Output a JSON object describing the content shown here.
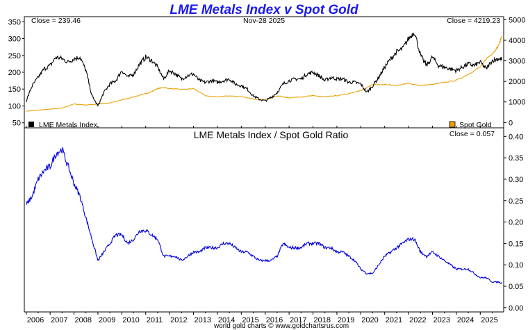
{
  "chart_data": [
    {
      "type": "line",
      "title": "LME Metals Index v Spot Gold",
      "date_label": "Nov-28  2025",
      "left_close": "Close = 239.46",
      "right_close": "Close = 4219.23",
      "left_axis": {
        "ylim": [
          35,
          365
        ],
        "ticks": [
          50,
          100,
          150,
          200,
          250,
          300,
          350
        ]
      },
      "right_axis": {
        "ylim": [
          -260,
          5150
        ],
        "ticks": [
          0,
          1000,
          2000,
          3000,
          4000,
          5000
        ]
      },
      "series": [
        {
          "name": "LME Metals Index",
          "axis": "left",
          "color": "#000000",
          "x": [
            2006.0,
            2006.25,
            2006.5,
            2006.75,
            2007.0,
            2007.25,
            2007.5,
            2007.75,
            2008.0,
            2008.25,
            2008.5,
            2008.75,
            2009.0,
            2009.25,
            2009.5,
            2009.75,
            2010.0,
            2010.25,
            2010.5,
            2010.75,
            2011.0,
            2011.25,
            2011.5,
            2011.75,
            2012.0,
            2012.25,
            2012.5,
            2012.75,
            2013.0,
            2013.25,
            2013.5,
            2013.75,
            2014.0,
            2014.25,
            2014.5,
            2014.75,
            2015.0,
            2015.25,
            2015.5,
            2015.75,
            2016.0,
            2016.25,
            2016.5,
            2016.75,
            2017.0,
            2017.25,
            2017.5,
            2017.75,
            2018.0,
            2018.25,
            2018.5,
            2018.75,
            2019.0,
            2019.25,
            2019.5,
            2019.75,
            2020.0,
            2020.25,
            2020.5,
            2020.75,
            2021.0,
            2021.25,
            2021.5,
            2021.75,
            2022.0,
            2022.25,
            2022.5,
            2022.75,
            2023.0,
            2023.25,
            2023.5,
            2023.75,
            2024.0,
            2024.25,
            2024.5,
            2024.75,
            2025.0,
            2025.25,
            2025.5,
            2025.75,
            2025.91
          ],
          "values": [
            115,
            160,
            185,
            210,
            220,
            245,
            240,
            230,
            240,
            245,
            205,
            130,
            100,
            140,
            165,
            175,
            205,
            185,
            195,
            225,
            245,
            235,
            215,
            180,
            205,
            195,
            180,
            190,
            195,
            175,
            170,
            175,
            170,
            175,
            180,
            165,
            160,
            150,
            130,
            120,
            115,
            125,
            140,
            165,
            175,
            180,
            180,
            195,
            200,
            190,
            175,
            185,
            180,
            180,
            170,
            170,
            165,
            140,
            160,
            185,
            215,
            240,
            260,
            270,
            300,
            320,
            250,
            220,
            245,
            220,
            215,
            210,
            205,
            215,
            225,
            220,
            230,
            210,
            235,
            240,
            239
          ]
        },
        {
          "name": "Spot Gold",
          "axis": "right",
          "color": "#e8a000",
          "x": [
            2006.0,
            2006.5,
            2007.0,
            2007.5,
            2008.0,
            2008.5,
            2009.0,
            2009.5,
            2010.0,
            2010.5,
            2011.0,
            2011.25,
            2011.5,
            2011.75,
            2012.0,
            2012.5,
            2013.0,
            2013.5,
            2014.0,
            2014.5,
            2015.0,
            2015.5,
            2016.0,
            2016.5,
            2017.0,
            2017.5,
            2018.0,
            2018.5,
            2019.0,
            2019.5,
            2020.0,
            2020.5,
            2021.0,
            2021.5,
            2022.0,
            2022.5,
            2023.0,
            2023.5,
            2024.0,
            2024.5,
            2025.0,
            2025.25,
            2025.5,
            2025.75,
            2025.91
          ],
          "values": [
            550,
            600,
            650,
            700,
            900,
            850,
            900,
            950,
            1100,
            1250,
            1400,
            1500,
            1650,
            1700,
            1650,
            1600,
            1650,
            1300,
            1250,
            1300,
            1250,
            1150,
            1100,
            1300,
            1200,
            1250,
            1300,
            1250,
            1300,
            1400,
            1550,
            1850,
            1850,
            1800,
            1900,
            1800,
            1850,
            1950,
            2050,
            2350,
            2700,
            3100,
            3350,
            3700,
            4219
          ]
        }
      ],
      "legend": [
        {
          "label": "LME Metals Index",
          "color": "#000000",
          "position": "bottom-left"
        },
        {
          "label": "Spot Gold",
          "color": "#e8a000",
          "position": "bottom-right"
        }
      ]
    },
    {
      "type": "line",
      "title": "LME Metals Index  /  Spot Gold Ratio",
      "close_label": "Close = 0.057",
      "ylim": [
        -0.01,
        0.42
      ],
      "ticks": [
        "0.00",
        "0.05",
        "0.10",
        "0.15",
        "0.20",
        "0.25",
        "0.30",
        "0.35",
        "0.40"
      ],
      "series": [
        {
          "name": "LME Metals Index / Spot Gold Ratio",
          "color": "#0000dd",
          "x": [
            2006.0,
            2006.25,
            2006.5,
            2006.75,
            2007.0,
            2007.25,
            2007.5,
            2007.75,
            2008.0,
            2008.25,
            2008.5,
            2008.75,
            2009.0,
            2009.25,
            2009.5,
            2009.75,
            2010.0,
            2010.25,
            2010.5,
            2010.75,
            2011.0,
            2011.25,
            2011.5,
            2011.75,
            2012.0,
            2012.25,
            2012.5,
            2012.75,
            2013.0,
            2013.25,
            2013.5,
            2013.75,
            2014.0,
            2014.25,
            2014.5,
            2014.75,
            2015.0,
            2015.25,
            2015.5,
            2015.75,
            2016.0,
            2016.25,
            2016.5,
            2016.75,
            2017.0,
            2017.25,
            2017.5,
            2017.75,
            2018.0,
            2018.25,
            2018.5,
            2018.75,
            2019.0,
            2019.25,
            2019.5,
            2019.75,
            2020.0,
            2020.25,
            2020.5,
            2020.75,
            2021.0,
            2021.25,
            2021.5,
            2021.75,
            2022.0,
            2022.25,
            2022.5,
            2022.75,
            2023.0,
            2023.25,
            2023.5,
            2023.75,
            2024.0,
            2024.25,
            2024.5,
            2024.75,
            2025.0,
            2025.25,
            2025.5,
            2025.75,
            2025.91
          ],
          "values": [
            0.24,
            0.26,
            0.3,
            0.32,
            0.33,
            0.36,
            0.37,
            0.33,
            0.29,
            0.26,
            0.21,
            0.16,
            0.11,
            0.13,
            0.15,
            0.17,
            0.17,
            0.15,
            0.16,
            0.18,
            0.18,
            0.17,
            0.16,
            0.12,
            0.12,
            0.12,
            0.11,
            0.12,
            0.13,
            0.13,
            0.14,
            0.14,
            0.14,
            0.15,
            0.15,
            0.14,
            0.13,
            0.13,
            0.12,
            0.11,
            0.11,
            0.11,
            0.12,
            0.15,
            0.14,
            0.14,
            0.14,
            0.15,
            0.15,
            0.15,
            0.14,
            0.14,
            0.13,
            0.13,
            0.12,
            0.11,
            0.09,
            0.08,
            0.08,
            0.1,
            0.12,
            0.13,
            0.14,
            0.15,
            0.16,
            0.16,
            0.13,
            0.12,
            0.13,
            0.12,
            0.11,
            0.1,
            0.09,
            0.09,
            0.09,
            0.08,
            0.07,
            0.07,
            0.06,
            0.06,
            0.057
          ]
        }
      ]
    }
  ],
  "x_axis": {
    "xlim": [
      2005.92,
      2025.98
    ],
    "tick_labels": [
      "2006",
      "2007",
      "2008",
      "2009",
      "2010",
      "2011",
      "2012",
      "2013",
      "2014",
      "2015",
      "2016",
      "2017",
      "2018",
      "2019",
      "2020",
      "2021",
      "2022",
      "2023",
      "2024",
      "2025"
    ]
  },
  "footer": "world gold charts © www.goldchartsrus.com"
}
